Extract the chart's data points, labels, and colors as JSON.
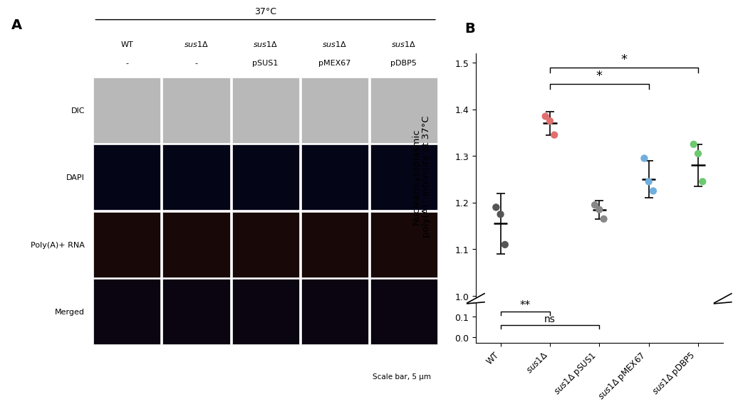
{
  "categories": [
    "WT",
    "sus1Δ",
    "sus1Δ pSUS1",
    "sus1Δ pMEX67",
    "sus1Δ pDBP5"
  ],
  "means": [
    1.155,
    1.37,
    1.185,
    1.25,
    1.28
  ],
  "sds": [
    0.065,
    0.025,
    0.02,
    0.04,
    0.045
  ],
  "dot_values": [
    [
      1.19,
      1.175,
      1.11
    ],
    [
      1.385,
      1.375,
      1.345
    ],
    [
      1.195,
      1.185,
      1.165
    ],
    [
      1.295,
      1.245,
      1.225
    ],
    [
      1.325,
      1.305,
      1.245
    ]
  ],
  "dot_colors": [
    "#555555",
    "#E07070",
    "#888888",
    "#70AEDE",
    "#6DC870"
  ],
  "ylabel": "Nuclear/cytoplasmic\npoly(A)⁺ intensity at 37°C",
  "yticks_main": [
    1.0,
    1.1,
    1.2,
    1.3,
    1.4,
    1.5
  ],
  "yticks_break": [
    0.0,
    0.1
  ],
  "background_color": "#ffffff",
  "panel_A_label": "A",
  "panel_B_label": "B",
  "header_37C": "37°C",
  "col_header_line1": [
    "WT",
    "sus1Δ",
    "sus1Δ",
    "sus1Δ",
    "sus1Δ"
  ],
  "col_header_line2": [
    "-",
    "-",
    "pSUS1",
    "pMEX67",
    "pDBP5"
  ],
  "row_labels": [
    "DIC",
    "DAPI",
    "Poly(A)+ RNA",
    "Merged"
  ],
  "scale_bar_text": "Scale bar, 5 μm",
  "xticklabels": [
    "WT",
    "sus1Δ",
    "sus1Δ pSUS1",
    "sus1Δ pMEX67",
    "sus1Δ pDBP5"
  ],
  "dot_offsets": [
    -0.09,
    0.0,
    0.09
  ]
}
